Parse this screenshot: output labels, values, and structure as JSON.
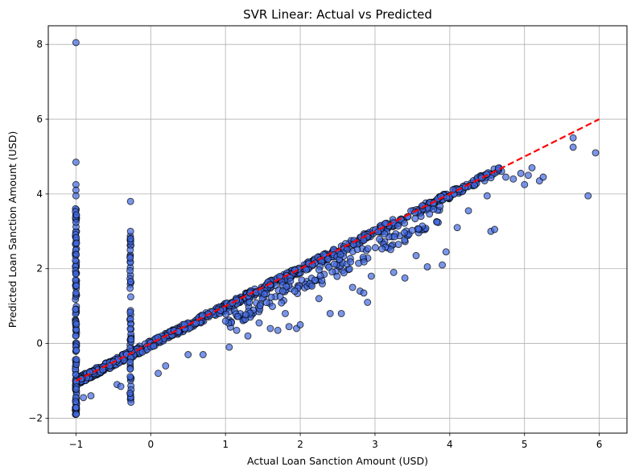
{
  "chart_data": {
    "type": "scatter",
    "title": "SVR Linear: Actual vs Predicted",
    "xlabel": "Actual Loan Sanction Amount (USD)",
    "ylabel": "Predicted Loan Sanction Amount (USD)",
    "xlim": [
      -1.37,
      6.37
    ],
    "ylim": [
      -2.4,
      8.5
    ],
    "xticks": [
      -1,
      0,
      1,
      2,
      3,
      4,
      5,
      6
    ],
    "xtick_labels": [
      "−1",
      "0",
      "1",
      "2",
      "3",
      "4",
      "5",
      "6"
    ],
    "yticks": [
      -2,
      0,
      2,
      4,
      6,
      8
    ],
    "ytick_labels": [
      "−2",
      "0",
      "2",
      "4",
      "6",
      "8"
    ],
    "grid": true,
    "colors": {
      "points_fill": "#4169e1",
      "points_edge": "#000000",
      "reference_line": "#ff0000",
      "grid": "#b0b0b0"
    },
    "reference_line": {
      "style": "dashed",
      "x": [
        -1,
        6
      ],
      "y": [
        -1,
        6
      ]
    },
    "main_band": {
      "x_start": -1,
      "x_end": 4.7,
      "offset_low": -0.12,
      "offset_high": 0.08
    },
    "vertical_clusters": [
      {
        "x": -1,
        "y_min": -1.9,
        "y_max": 3.7
      },
      {
        "x": -0.27,
        "y_min": -1.6,
        "y_max": 2.9
      }
    ],
    "outliers": [
      [
        -1,
        8.05
      ],
      [
        -1,
        4.85
      ],
      [
        -1,
        4.25
      ],
      [
        -1,
        4.1
      ],
      [
        -1,
        3.95
      ],
      [
        -0.27,
        3.8
      ],
      [
        -0.27,
        3.0
      ],
      [
        -0.27,
        2.8
      ],
      [
        -0.8,
        -1.4
      ],
      [
        -0.9,
        -1.45
      ],
      [
        -0.45,
        -1.1
      ],
      [
        -0.4,
        -1.15
      ],
      [
        0.1,
        -0.8
      ],
      [
        0.2,
        -0.6
      ],
      [
        0.5,
        -0.3
      ],
      [
        0.7,
        -0.3
      ],
      [
        1.05,
        -0.1
      ],
      [
        1.15,
        0.35
      ],
      [
        1.3,
        0.2
      ],
      [
        1.45,
        0.55
      ],
      [
        1.6,
        0.4
      ],
      [
        1.7,
        0.35
      ],
      [
        1.8,
        0.8
      ],
      [
        1.85,
        0.45
      ],
      [
        1.95,
        0.4
      ],
      [
        2.0,
        0.5
      ],
      [
        2.25,
        1.2
      ],
      [
        2.4,
        0.8
      ],
      [
        2.55,
        0.8
      ],
      [
        2.7,
        1.5
      ],
      [
        2.8,
        1.4
      ],
      [
        2.85,
        1.35
      ],
      [
        2.9,
        1.1
      ],
      [
        2.95,
        1.8
      ],
      [
        3.25,
        1.9
      ],
      [
        3.4,
        1.75
      ],
      [
        3.55,
        2.35
      ],
      [
        3.7,
        2.05
      ],
      [
        3.9,
        2.1
      ],
      [
        3.95,
        2.45
      ],
      [
        4.1,
        3.1
      ],
      [
        4.25,
        3.55
      ],
      [
        4.5,
        3.95
      ],
      [
        4.55,
        3.0
      ],
      [
        4.6,
        3.05
      ],
      [
        4.75,
        4.45
      ],
      [
        4.85,
        4.4
      ],
      [
        4.95,
        4.55
      ],
      [
        5.0,
        4.25
      ],
      [
        5.05,
        4.5
      ],
      [
        5.1,
        4.7
      ],
      [
        5.2,
        4.35
      ],
      [
        5.25,
        4.45
      ],
      [
        5.65,
        5.5
      ],
      [
        5.65,
        5.25
      ],
      [
        5.85,
        3.95
      ],
      [
        5.95,
        5.1
      ]
    ]
  }
}
